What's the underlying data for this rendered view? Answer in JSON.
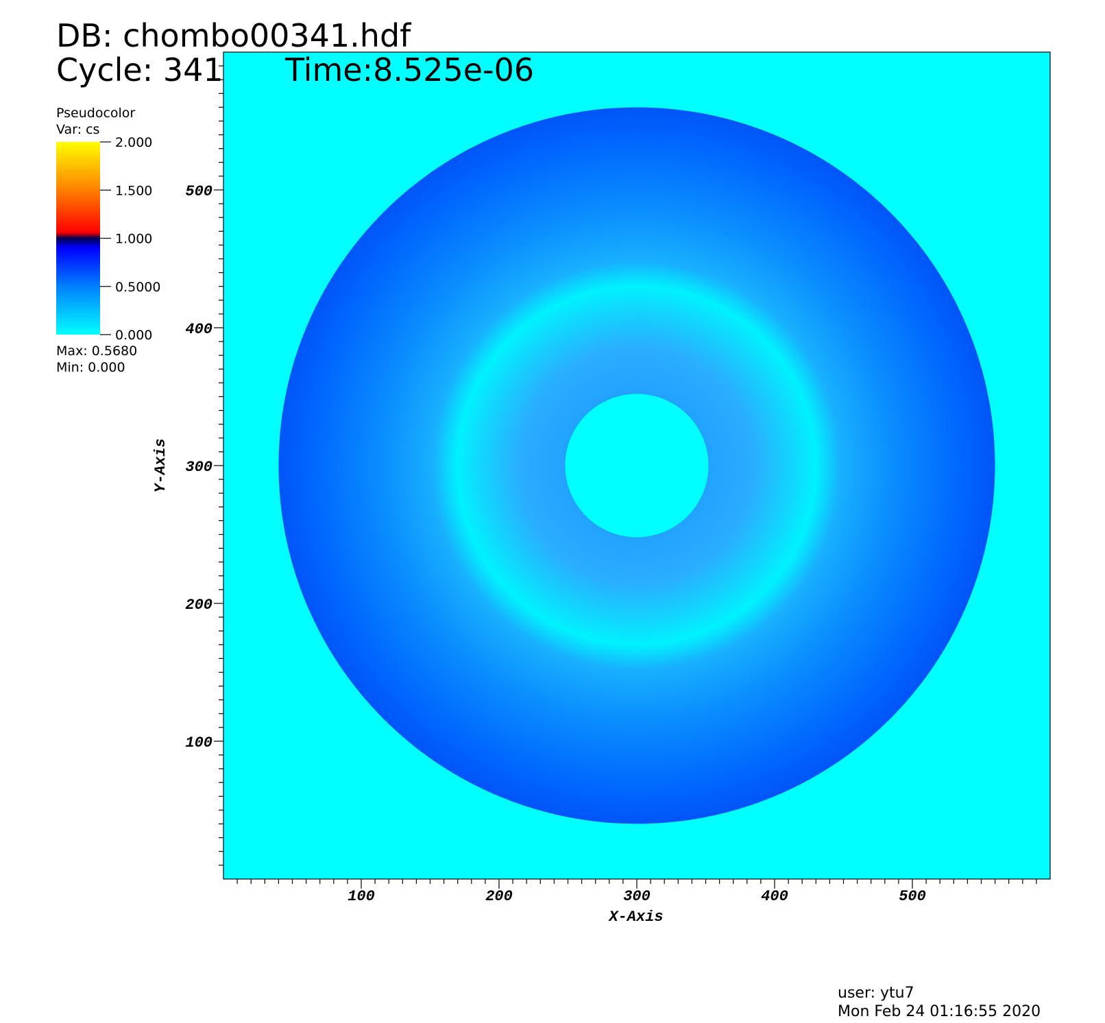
{
  "chart_data": {
    "type": "pseudocolor",
    "db": "DB: chombo00341.hdf",
    "cycle": "Cycle: 341",
    "time": "Time:8.525e-06",
    "plot_name": "Pseudocolor",
    "variable": "Var: cs",
    "cbar_lim": [
      0,
      2
    ],
    "cbar_ticks": [
      {
        "value": 2,
        "label": "2.000"
      },
      {
        "value": 1.5,
        "label": "1.500"
      },
      {
        "value": 1,
        "label": "1.000"
      },
      {
        "value": 0.5,
        "label": "0.5000"
      },
      {
        "value": 0,
        "label": "0.000"
      }
    ],
    "max": "Max:  0.5680",
    "min": "Min:  0.000",
    "xlabel": "X-Axis",
    "ylabel": "Y-Axis",
    "xlim": [
      0,
      600
    ],
    "ylim": [
      0,
      600
    ],
    "xticks": [
      100,
      200,
      300,
      400,
      500
    ],
    "yticks": [
      100,
      200,
      300,
      400,
      500
    ],
    "xminorticks": [
      10,
      20,
      30,
      40,
      50,
      60,
      70,
      80,
      90,
      110,
      120,
      130,
      140,
      150,
      160,
      170,
      180,
      190,
      210,
      220,
      230,
      240,
      250,
      260,
      270,
      280,
      290,
      310,
      320,
      330,
      340,
      350,
      360,
      370,
      380,
      390,
      410,
      420,
      430,
      440,
      450,
      460,
      470,
      480,
      490,
      510,
      520,
      530,
      540,
      550,
      560,
      570,
      580,
      590
    ],
    "yminorticks": [
      10,
      20,
      30,
      40,
      50,
      60,
      70,
      80,
      90,
      110,
      120,
      130,
      140,
      150,
      160,
      170,
      180,
      190,
      210,
      220,
      230,
      240,
      250,
      260,
      270,
      280,
      290,
      310,
      320,
      330,
      340,
      350,
      360,
      370,
      380,
      390,
      410,
      420,
      430,
      440,
      450,
      460,
      470,
      480,
      490,
      510,
      520,
      530,
      540,
      550,
      560,
      570,
      580,
      590
    ],
    "user": "user: ytu7",
    "date": "Mon Feb 24 01:16:55 2020"
  }
}
